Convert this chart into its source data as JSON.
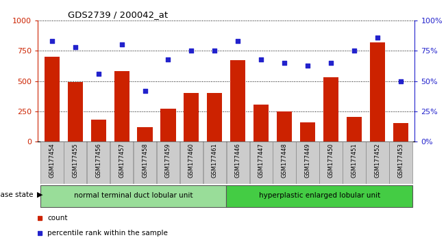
{
  "title": "GDS2739 / 200042_at",
  "samples": [
    "GSM177454",
    "GSM177455",
    "GSM177456",
    "GSM177457",
    "GSM177458",
    "GSM177459",
    "GSM177460",
    "GSM177461",
    "GSM177446",
    "GSM177447",
    "GSM177448",
    "GSM177449",
    "GSM177450",
    "GSM177451",
    "GSM177452",
    "GSM177453"
  ],
  "counts": [
    700,
    490,
    180,
    580,
    120,
    270,
    400,
    400,
    670,
    305,
    250,
    160,
    530,
    205,
    820,
    155
  ],
  "percentiles": [
    83,
    78,
    56,
    80,
    42,
    68,
    75,
    75,
    83,
    68,
    65,
    63,
    65,
    75,
    86,
    50
  ],
  "group1_label": "normal terminal duct lobular unit",
  "group2_label": "hyperplastic enlarged lobular unit",
  "group1_count": 8,
  "group2_count": 8,
  "ylim_left": [
    0,
    1000
  ],
  "ylim_right": [
    0,
    100
  ],
  "yticks_left": [
    0,
    250,
    500,
    750,
    1000
  ],
  "yticks_right": [
    0,
    25,
    50,
    75,
    100
  ],
  "bar_color": "#cc2200",
  "scatter_color": "#2222cc",
  "group1_bg": "#99dd99",
  "group2_bg": "#44cc44",
  "left_axis_color": "#cc2200",
  "right_axis_color": "#2222cc",
  "legend_count_label": "count",
  "legend_pct_label": "percentile rank within the sample",
  "disease_state_label": "disease state"
}
